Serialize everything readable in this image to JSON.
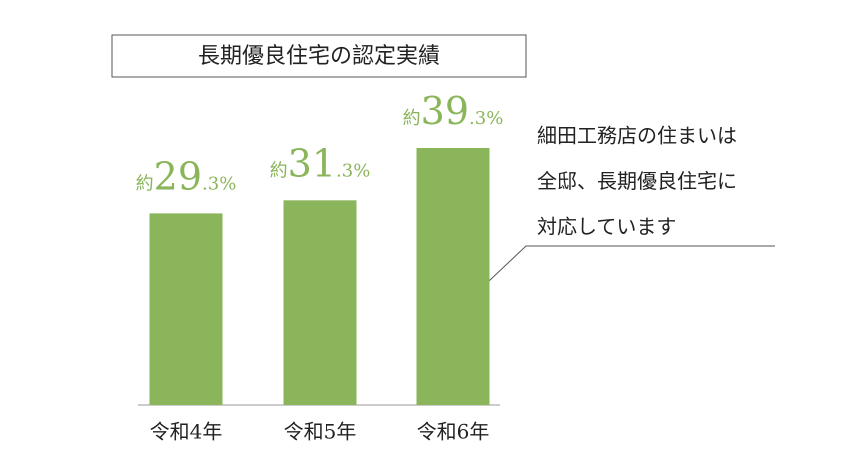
{
  "chart_data": {
    "type": "bar",
    "title": "長期優良住宅の認定実績",
    "categories": [
      "令和4年",
      "令和5年",
      "令和6年"
    ],
    "values": [
      29.3,
      31.3,
      39.3
    ],
    "value_labels": [
      "約29.3%",
      "約31.3%",
      "約39.3%"
    ],
    "color": "#8ab55a",
    "annotation": [
      "細田工務店の住まいは",
      "全邸、長期優良住宅に",
      "対応しています"
    ]
  }
}
